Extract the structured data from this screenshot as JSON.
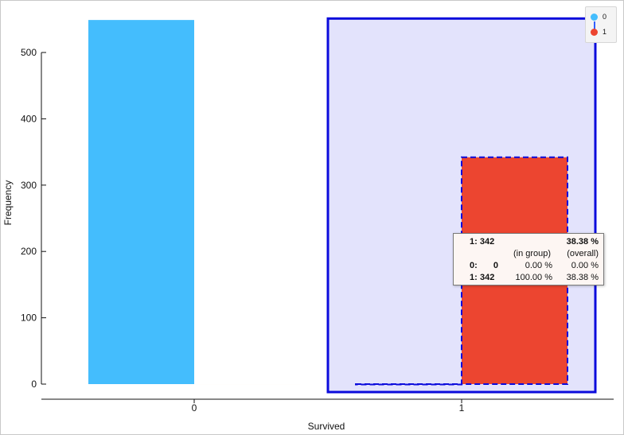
{
  "chart_data": {
    "type": "bar",
    "xlabel": "Survived",
    "ylabel": "Frequency",
    "categories": [
      "0",
      "1"
    ],
    "ylim": [
      0,
      550
    ],
    "yticks": [
      0,
      100,
      200,
      300,
      400,
      500
    ],
    "series": [
      {
        "name": "0",
        "values": [
          549,
          0
        ]
      },
      {
        "name": "1",
        "values": [
          0,
          342
        ]
      }
    ],
    "selected_category": "1",
    "legend_position": "top-right",
    "grid": false
  },
  "legend": {
    "items": [
      {
        "label": "0",
        "color": "#44bdfd"
      },
      {
        "label": "1",
        "color": "#ec4530"
      }
    ],
    "connector_color": "#3060ff"
  },
  "colors": {
    "series_0": "#44bdfd",
    "series_1": "#ec4530",
    "selection_fill": "#e3e3fc",
    "selection_stroke": "#0b0bdc",
    "axis": "#111111"
  },
  "tooltip": {
    "header_label": "1: 342",
    "header_pct": "38.38 %",
    "col_in_group": "(in group)",
    "col_overall": "(overall)",
    "rows": [
      {
        "key": "0:",
        "count": "0",
        "in_group": "0.00 %",
        "overall": "0.00 %"
      },
      {
        "key": "1:",
        "count": "342",
        "in_group": "100.00 %",
        "overall": "38.38 %"
      }
    ]
  }
}
